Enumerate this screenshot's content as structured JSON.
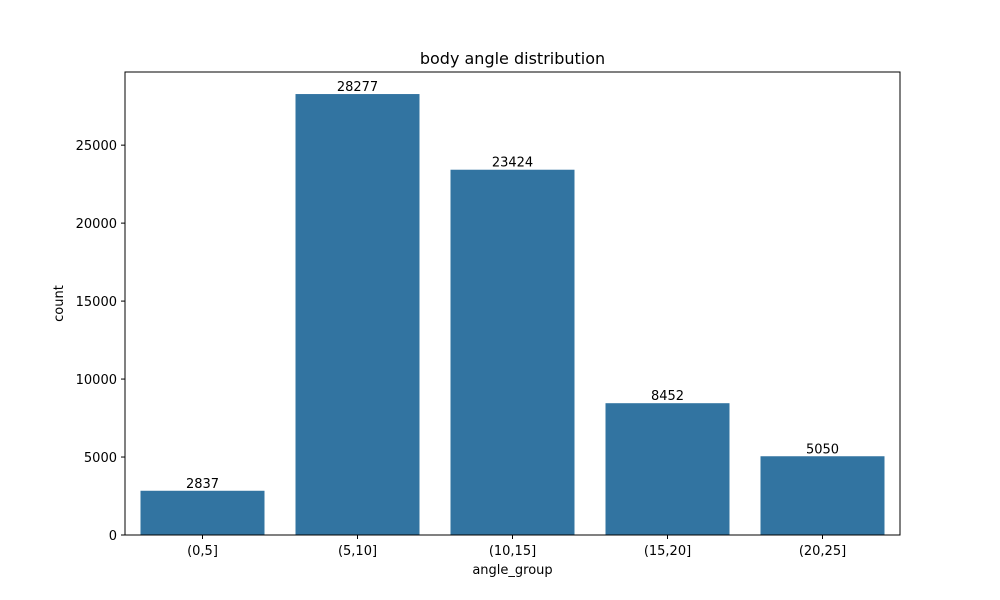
{
  "chart_data": {
    "type": "bar",
    "title": "body angle distribution",
    "xlabel": "angle_group",
    "ylabel": "count",
    "categories": [
      "(0,5]",
      "(5,10]",
      "(10,15]",
      "(15,20]",
      "(20,25]"
    ],
    "values": [
      2837,
      28277,
      23424,
      8452,
      5050
    ],
    "data_labels": [
      "2837",
      "28277",
      "23424",
      "8452",
      "5050"
    ],
    "yticks": [
      0,
      5000,
      10000,
      15000,
      20000,
      25000
    ],
    "ytick_labels": [
      "0",
      "5000",
      "10000",
      "15000",
      "20000",
      "25000"
    ],
    "ylim": [
      0,
      29691
    ],
    "grid": false,
    "bar_color": "#3274a1"
  }
}
